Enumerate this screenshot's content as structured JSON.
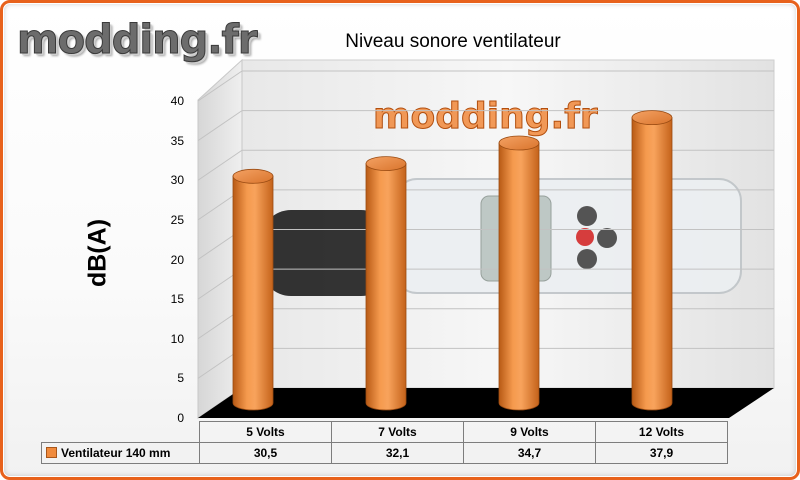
{
  "site_logo": "modding.fr",
  "watermark": "modding.fr",
  "colors": {
    "frame": "#e8621c",
    "bar": "#f08a3c",
    "floor": "#000000"
  },
  "chart_data": {
    "type": "bar",
    "title": "Niveau sonore ventilateur",
    "ylabel": "dB(A)",
    "xlabel": "",
    "categories": [
      "5 Volts",
      "7 Volts",
      "9 Volts",
      "12 Volts"
    ],
    "series": [
      {
        "name": "Ventilateur 140 mm",
        "values": [
          30.5,
          32.1,
          34.7,
          37.9
        ],
        "value_labels": [
          "30,5",
          "32,1",
          "34,7",
          "37,9"
        ]
      }
    ],
    "ylim": [
      0,
      40
    ],
    "yticks": [
      0,
      5,
      10,
      15,
      20,
      25,
      30,
      35,
      40
    ],
    "grid": true,
    "legend": "data-table",
    "style": "3d-cylinder"
  }
}
